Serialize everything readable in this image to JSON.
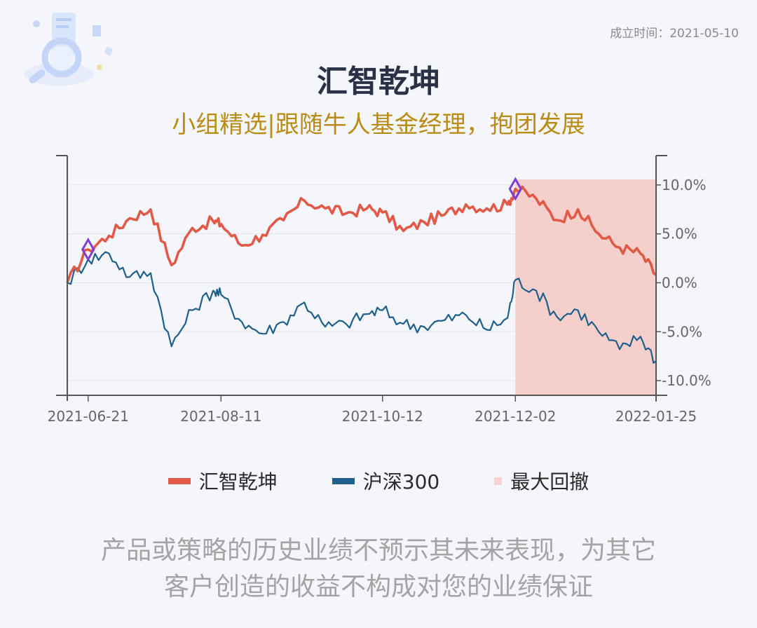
{
  "founded_text": "成立时间：2021-05-10",
  "title": "汇智乾坤",
  "subtitle": "小组精选|跟随牛人基金经理，抱团发展",
  "disclaimer": {
    "line1": "产品或策略的历史业绩不预示其未来表现，为其它",
    "line2": "客户创造的收益不构成对您的业绩保证"
  },
  "chart_data": {
    "type": "line",
    "x": [
      "2021-06-13",
      "2021-06-21",
      "2021-06-29",
      "2021-07-07",
      "2021-07-15",
      "2021-07-23",
      "2021-07-31",
      "2021-08-08",
      "2021-08-11",
      "2021-08-19",
      "2021-08-27",
      "2021-09-04",
      "2021-09-12",
      "2021-09-20",
      "2021-09-28",
      "2021-10-06",
      "2021-10-12",
      "2021-10-20",
      "2021-10-28",
      "2021-11-05",
      "2021-11-13",
      "2021-11-21",
      "2021-11-29",
      "2021-12-02",
      "2021-12-10",
      "2021-12-18",
      "2021-12-26",
      "2022-01-03",
      "2022-01-11",
      "2022-01-19",
      "2022-01-25"
    ],
    "series": [
      {
        "name": "汇智乾坤",
        "color": "#e05a47",
        "values": [
          0.0,
          3.4,
          4.8,
          6.6,
          7.5,
          1.8,
          5.6,
          6.3,
          6.0,
          3.8,
          4.9,
          6.4,
          8.4,
          7.6,
          7.1,
          7.6,
          7.2,
          5.3,
          6.2,
          7.0,
          8.0,
          7.6,
          8.0,
          9.6,
          8.6,
          6.4,
          7.5,
          5.0,
          3.6,
          3.0,
          0.8
        ]
      },
      {
        "name": "沪深300",
        "color": "#1f5f8b",
        "values": [
          0.0,
          2.4,
          3.0,
          0.6,
          1.0,
          -6.5,
          -2.8,
          -0.8,
          -1.2,
          -4.0,
          -5.2,
          -4.0,
          -2.0,
          -4.5,
          -4.2,
          -3.2,
          -2.8,
          -4.2,
          -4.5,
          -3.8,
          -3.3,
          -4.8,
          -3.6,
          0.3,
          -0.8,
          -3.5,
          -2.8,
          -5.0,
          -6.8,
          -5.5,
          -8.0
        ]
      }
    ],
    "drawdown": {
      "name": "最大回撤",
      "color": "#f4c8c3",
      "start": "2021-12-02",
      "end": "2022-01-25"
    },
    "peak_markers": [
      {
        "series": 0,
        "x": "2021-06-21",
        "value": 3.4
      },
      {
        "series": 0,
        "x": "2021-12-02",
        "value": 9.6
      }
    ],
    "marker_color": "#7b3fd6",
    "xticks": [
      "2021-06-21",
      "2021-08-11",
      "2021-10-12",
      "2021-12-02",
      "2022-01-25"
    ],
    "yticks": [
      10.0,
      5.0,
      0.0,
      -5.0,
      -10.0
    ],
    "ytick_labels": [
      "10.0%",
      "5.0%",
      "0.0%",
      "-5.0%",
      "-10.0%"
    ],
    "ylim": [
      -11.5,
      13.0
    ],
    "y_axis_side": "right",
    "grid": true,
    "legend_position": "bottom-center"
  }
}
